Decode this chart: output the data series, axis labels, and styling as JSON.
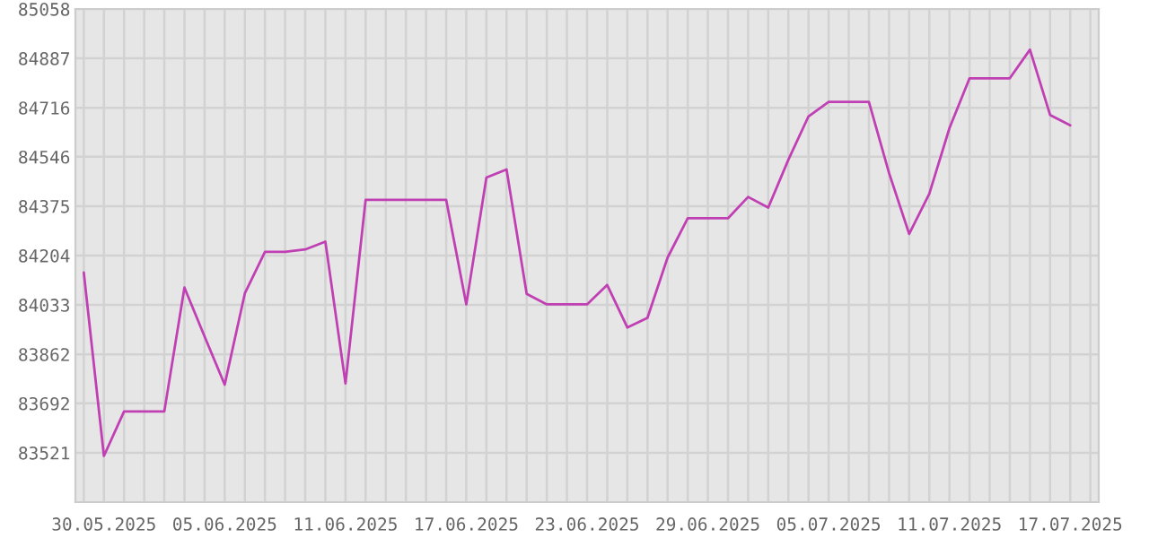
{
  "chart_data": {
    "type": "line",
    "x": [
      "2025-05-29",
      "2025-05-30",
      "2025-05-31",
      "2025-06-01",
      "2025-06-02",
      "2025-06-03",
      "2025-06-04",
      "2025-06-05",
      "2025-06-06",
      "2025-06-07",
      "2025-06-08",
      "2025-06-09",
      "2025-06-10",
      "2025-06-11",
      "2025-06-12",
      "2025-06-13",
      "2025-06-14",
      "2025-06-15",
      "2025-06-16",
      "2025-06-17",
      "2025-06-18",
      "2025-06-19",
      "2025-06-20",
      "2025-06-21",
      "2025-06-22",
      "2025-06-23",
      "2025-06-24",
      "2025-06-25",
      "2025-06-26",
      "2025-06-27",
      "2025-06-28",
      "2025-06-29",
      "2025-06-30",
      "2025-07-01",
      "2025-07-02",
      "2025-07-03",
      "2025-07-04",
      "2025-07-05",
      "2025-07-06",
      "2025-07-07",
      "2025-07-08",
      "2025-07-09",
      "2025-07-10",
      "2025-07-11",
      "2025-07-12",
      "2025-07-13",
      "2025-07-14",
      "2025-07-15",
      "2025-07-16",
      "2025-07-17"
    ],
    "series": [
      {
        "color": "#c040b4",
        "values": [
          84145,
          83510,
          83664,
          83664,
          83664,
          84093,
          83924,
          83757,
          84073,
          84217,
          84217,
          84225,
          84252,
          83761,
          84397,
          84397,
          84397,
          84397,
          84397,
          84035,
          84474,
          84502,
          84071,
          84035,
          84035,
          84035,
          84102,
          83955,
          83988,
          84197,
          84333,
          84333,
          84333,
          84407,
          84370,
          84536,
          84686,
          84736,
          84736,
          84736,
          84490,
          84279,
          84418,
          84645,
          84818,
          84818,
          84818,
          84917,
          84691,
          84655
        ]
      }
    ],
    "xlim": [
      "2025-05-28T14:00",
      "2025-07-18T10:00"
    ],
    "xticks": [
      {
        "value": "2025-05-29",
        "label": null
      },
      {
        "value": "2025-05-30",
        "label": "30.05.2025"
      },
      {
        "value": "2025-05-31",
        "label": null
      },
      {
        "value": "2025-06-01",
        "label": null
      },
      {
        "value": "2025-06-02",
        "label": null
      },
      {
        "value": "2025-06-03",
        "label": null
      },
      {
        "value": "2025-06-04",
        "label": null
      },
      {
        "value": "2025-06-05",
        "label": "05.06.2025"
      },
      {
        "value": "2025-06-06",
        "label": null
      },
      {
        "value": "2025-06-07",
        "label": null
      },
      {
        "value": "2025-06-08",
        "label": null
      },
      {
        "value": "2025-06-09",
        "label": null
      },
      {
        "value": "2025-06-10",
        "label": null
      },
      {
        "value": "2025-06-11",
        "label": "11.06.2025"
      },
      {
        "value": "2025-06-12",
        "label": null
      },
      {
        "value": "2025-06-13",
        "label": null
      },
      {
        "value": "2025-06-14",
        "label": null
      },
      {
        "value": "2025-06-15",
        "label": null
      },
      {
        "value": "2025-06-16",
        "label": null
      },
      {
        "value": "2025-06-17",
        "label": "17.06.2025"
      },
      {
        "value": "2025-06-18",
        "label": null
      },
      {
        "value": "2025-06-19",
        "label": null
      },
      {
        "value": "2025-06-20",
        "label": null
      },
      {
        "value": "2025-06-21",
        "label": null
      },
      {
        "value": "2025-06-22",
        "label": null
      },
      {
        "value": "2025-06-23",
        "label": "23.06.2025"
      },
      {
        "value": "2025-06-24",
        "label": null
      },
      {
        "value": "2025-06-25",
        "label": null
      },
      {
        "value": "2025-06-26",
        "label": null
      },
      {
        "value": "2025-06-27",
        "label": null
      },
      {
        "value": "2025-06-28",
        "label": null
      },
      {
        "value": "2025-06-29",
        "label": "29.06.2025"
      },
      {
        "value": "2025-06-30",
        "label": null
      },
      {
        "value": "2025-07-01",
        "label": null
      },
      {
        "value": "2025-07-02",
        "label": null
      },
      {
        "value": "2025-07-03",
        "label": null
      },
      {
        "value": "2025-07-04",
        "label": null
      },
      {
        "value": "2025-07-05",
        "label": "05.07.2025"
      },
      {
        "value": "2025-07-06",
        "label": null
      },
      {
        "value": "2025-07-07",
        "label": null
      },
      {
        "value": "2025-07-08",
        "label": null
      },
      {
        "value": "2025-07-09",
        "label": null
      },
      {
        "value": "2025-07-10",
        "label": null
      },
      {
        "value": "2025-07-11",
        "label": "11.07.2025"
      },
      {
        "value": "2025-07-12",
        "label": null
      },
      {
        "value": "2025-07-13",
        "label": null
      },
      {
        "value": "2025-07-14",
        "label": null
      },
      {
        "value": "2025-07-15",
        "label": null
      },
      {
        "value": "2025-07-16",
        "label": null
      },
      {
        "value": "2025-07-17",
        "label": "17.07.2025"
      },
      {
        "value": "2025-07-18",
        "label": null
      }
    ],
    "ylim": [
      83350,
      85058
    ],
    "yticks": [
      83521,
      83692,
      83862,
      84033,
      84204,
      84375,
      84546,
      84716,
      84887,
      85058
    ],
    "grid": true,
    "legend": false,
    "marker": "none",
    "line_style": "solid"
  }
}
